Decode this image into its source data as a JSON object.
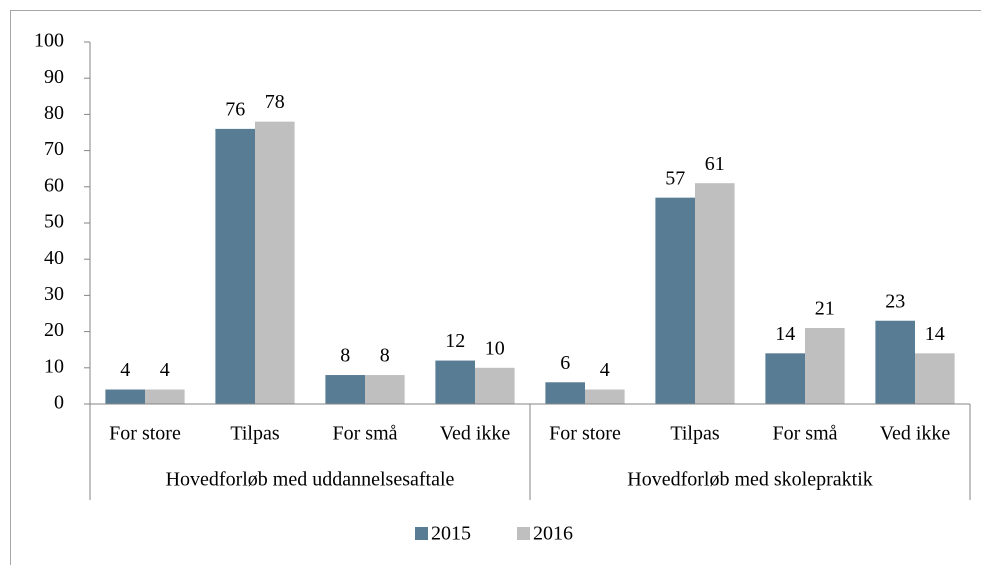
{
  "chart_data": {
    "type": "bar",
    "groups": [
      {
        "name": "Hovedforløb med uddannelsesaftale",
        "categories": [
          "For store",
          "Tilpas",
          "For små",
          "Ved ikke"
        ]
      },
      {
        "name": "Hovedforløb med skolepraktik",
        "categories": [
          "For store",
          "Tilpas",
          "For små",
          "Ved ikke"
        ]
      }
    ],
    "series": [
      {
        "name": "2015",
        "color": "#577c94",
        "values": [
          4,
          76,
          8,
          12,
          6,
          57,
          14,
          23
        ]
      },
      {
        "name": "2016",
        "color": "#bfbfbf",
        "values": [
          4,
          78,
          8,
          10,
          4,
          61,
          21,
          14
        ]
      }
    ],
    "ylim": [
      0,
      100
    ],
    "yticks": [
      0,
      10,
      20,
      30,
      40,
      50,
      60,
      70,
      80,
      90,
      100
    ],
    "legend": "bottom"
  }
}
